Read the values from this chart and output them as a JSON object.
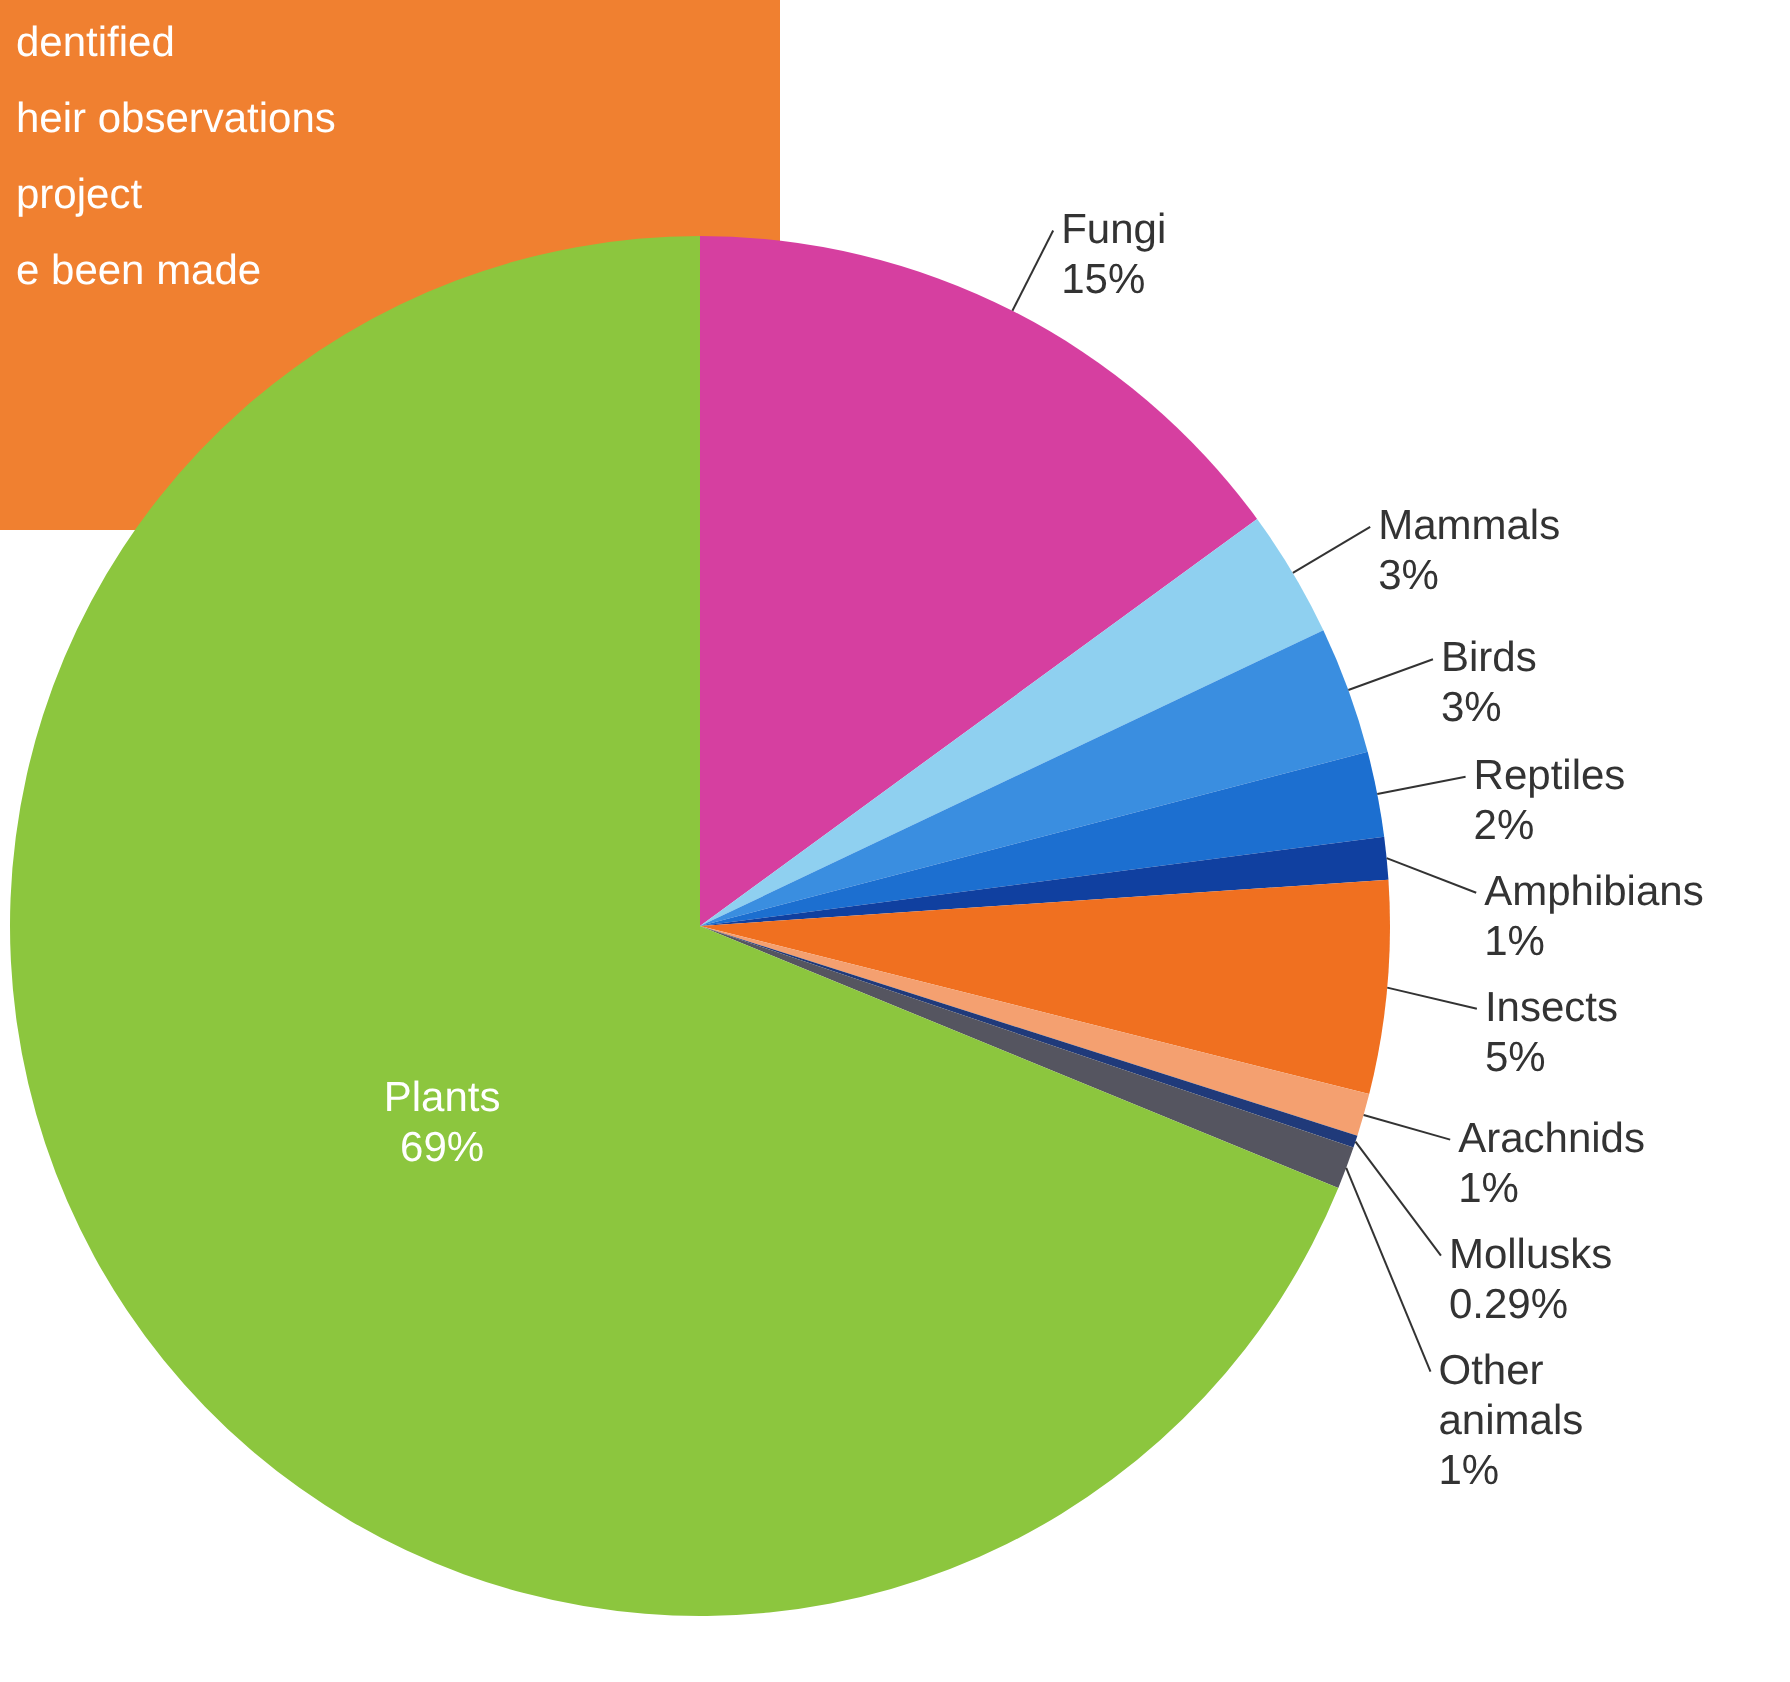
{
  "chart_data": {
    "type": "pie",
    "categories": [
      "Fungi",
      "Mammals",
      "Birds",
      "Reptiles",
      "Amphibians",
      "Insects",
      "Arachnids",
      "Mollusks",
      "Other animals",
      "Plants"
    ],
    "values": [
      15,
      3,
      3,
      2,
      1,
      5,
      1,
      0.29,
      1,
      69
    ],
    "value_labels": [
      "15%",
      "3%",
      "3%",
      "2%",
      "1%",
      "5%",
      "1%",
      "0.29%",
      "1%",
      "69%"
    ],
    "colors": [
      "#d63fa0",
      "#8fd0f0",
      "#3a8ee0",
      "#1c6fd0",
      "#1040a0",
      "#f07020",
      "#f4a070",
      "#203a7a",
      "#555560",
      "#8cc63e"
    ],
    "annotations": [
      "dentified",
      "heir observations",
      "project",
      "e been made"
    ]
  }
}
